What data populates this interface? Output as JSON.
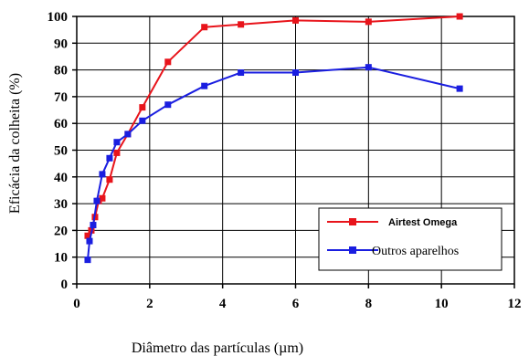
{
  "chart_data": {
    "type": "line",
    "xlabel": "Diâmetro das partículas (µm)",
    "ylabel": "Eficácia da colheita (%)",
    "xlim": [
      0,
      12
    ],
    "ylim": [
      0,
      100
    ],
    "x_ticks": [
      "0",
      "2",
      "4",
      "6",
      "8",
      "10",
      "12"
    ],
    "y_ticks": [
      "0",
      "10",
      "20",
      "30",
      "40",
      "50",
      "60",
      "70",
      "80",
      "90",
      "100"
    ],
    "grid": true,
    "legend_position": "bottom-right",
    "series": [
      {
        "name": "Airtest Omega",
        "color": "#e8141b",
        "marker": "square",
        "x": [
          0.3,
          0.4,
          0.5,
          0.6,
          0.7,
          0.9,
          1.1,
          1.4,
          1.8,
          2.5,
          3.5,
          4.5,
          6,
          8,
          10.5
        ],
        "y": [
          18,
          20,
          25,
          31,
          32,
          39,
          49,
          56,
          66,
          83,
          96,
          97,
          98.5,
          98,
          100
        ]
      },
      {
        "name": "Outros aparelhos",
        "color": "#1a1ee0",
        "marker": "square",
        "x": [
          0.3,
          0.35,
          0.45,
          0.55,
          0.7,
          0.9,
          1.1,
          1.4,
          1.8,
          2.5,
          3.5,
          4.5,
          6,
          8,
          10.5
        ],
        "y": [
          9,
          16,
          22,
          31,
          41,
          47,
          53,
          56,
          61,
          67,
          74,
          79,
          79,
          81,
          73
        ]
      }
    ]
  }
}
